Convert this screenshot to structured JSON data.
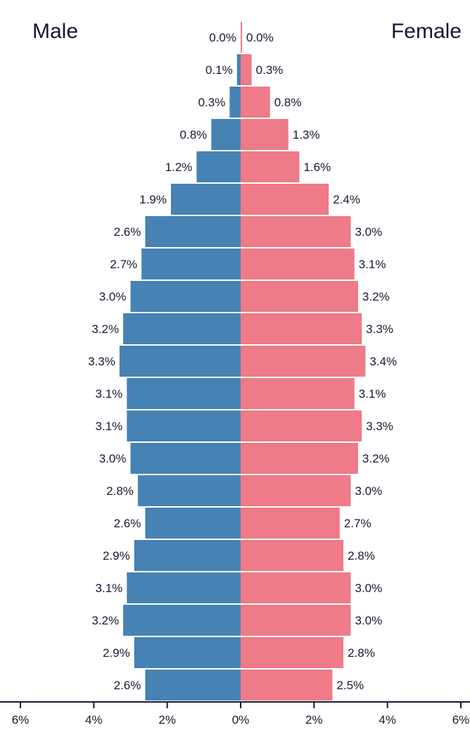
{
  "chart_data": {
    "type": "bar",
    "subtype": "population-pyramid",
    "title": "",
    "xlabel": "",
    "ylabel": "",
    "xlim": [
      -6,
      6
    ],
    "grid": false,
    "legend": "none",
    "side_labels": {
      "left": "Male",
      "right": "Female"
    },
    "colors": {
      "male": "#4682b4",
      "female": "#ef7a88",
      "text": "#141a2e"
    },
    "x_ticks": [
      "6%",
      "4%",
      "2%",
      "0%",
      "2%",
      "4%",
      "6%"
    ],
    "x_tick_values": [
      -6,
      -4,
      -2,
      0,
      2,
      4,
      6
    ],
    "series": [
      {
        "name": "Male",
        "values": [
          0.0,
          0.1,
          0.3,
          0.8,
          1.2,
          1.9,
          2.6,
          2.7,
          3.0,
          3.2,
          3.3,
          3.1,
          3.1,
          3.0,
          2.8,
          2.6,
          2.9,
          3.1,
          3.2,
          2.9,
          2.6
        ],
        "labels": [
          "0.0%",
          "0.1%",
          "0.3%",
          "0.8%",
          "1.2%",
          "1.9%",
          "2.6%",
          "2.7%",
          "3.0%",
          "3.2%",
          "3.3%",
          "3.1%",
          "3.1%",
          "3.0%",
          "2.8%",
          "2.6%",
          "2.9%",
          "3.1%",
          "3.2%",
          "2.9%",
          "2.6%"
        ]
      },
      {
        "name": "Female",
        "values": [
          0.0,
          0.3,
          0.8,
          1.3,
          1.6,
          2.4,
          3.0,
          3.1,
          3.2,
          3.3,
          3.4,
          3.1,
          3.3,
          3.2,
          3.0,
          2.7,
          2.8,
          3.0,
          3.0,
          2.8,
          2.5
        ],
        "labels": [
          "0.0%",
          "0.3%",
          "0.8%",
          "1.3%",
          "1.6%",
          "2.4%",
          "3.0%",
          "3.1%",
          "3.2%",
          "3.3%",
          "3.4%",
          "3.1%",
          "3.3%",
          "3.2%",
          "3.0%",
          "2.7%",
          "2.8%",
          "3.0%",
          "3.0%",
          "2.8%",
          "2.5%"
        ]
      }
    ]
  }
}
